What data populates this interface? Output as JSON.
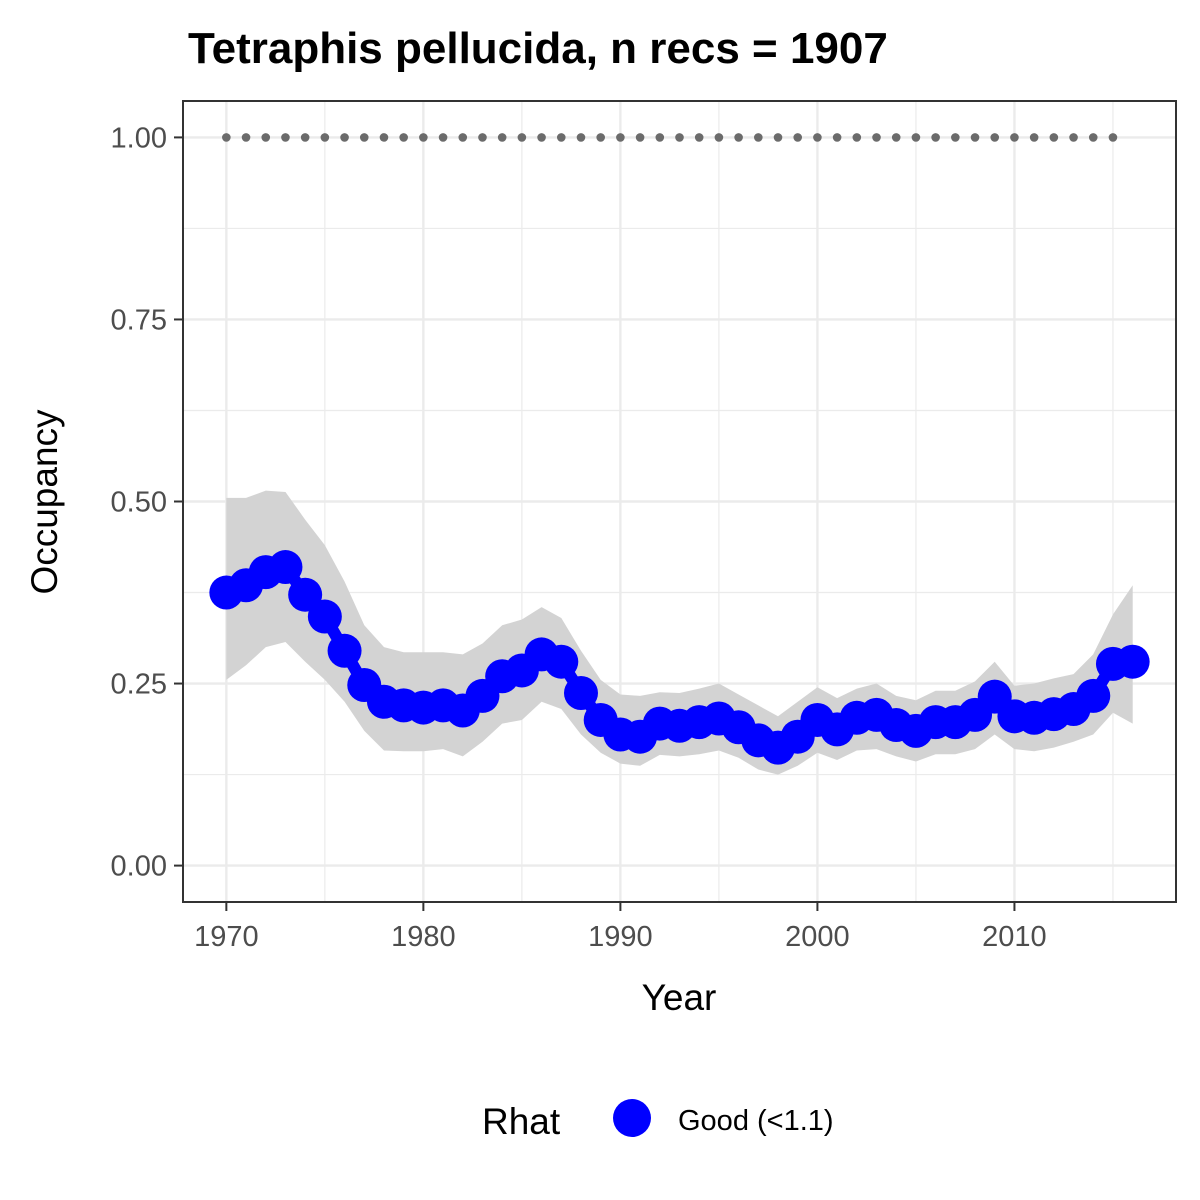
{
  "chart_data": {
    "type": "line",
    "title": "Tetraphis pellucida, n recs = 1907",
    "xlabel": "Year",
    "ylabel": "Occupancy",
    "xlim": [
      1967.8,
      2018.2
    ],
    "ylim": [
      -0.05,
      1.05
    ],
    "x_ticks": [
      1970,
      1980,
      1990,
      2000,
      2010
    ],
    "x_tick_labels": [
      "1970",
      "1980",
      "1990",
      "2000",
      "2010"
    ],
    "y_ticks": [
      0,
      0.25,
      0.5,
      0.75,
      1.0
    ],
    "y_tick_labels": [
      "0.00",
      "0.25",
      "0.50",
      "0.75",
      "1.00"
    ],
    "grid": true,
    "legend": {
      "title": "Rhat",
      "placement": "bottom",
      "entries": [
        {
          "label": "Good (<1.1)",
          "color": "#0000ff"
        }
      ]
    },
    "colors": {
      "points": "#0000ff",
      "ribbon": "#d3d3d3",
      "reference": "#6b6b6b",
      "grid": "#ebebeb",
      "border": "#333333"
    },
    "series": [
      {
        "name": "Good (<1.1)",
        "x": [
          1970,
          1971,
          1972,
          1973,
          1974,
          1975,
          1976,
          1977,
          1978,
          1979,
          1980,
          1981,
          1982,
          1983,
          1984,
          1985,
          1986,
          1987,
          1988,
          1989,
          1990,
          1991,
          1992,
          1993,
          1994,
          1995,
          1996,
          1997,
          1998,
          1999,
          2000,
          2001,
          2002,
          2003,
          2004,
          2005,
          2006,
          2007,
          2008,
          2009,
          2010,
          2011,
          2012,
          2013,
          2014,
          2015,
          2016
        ],
        "y": [
          0.375,
          0.385,
          0.403,
          0.41,
          0.372,
          0.342,
          0.295,
          0.248,
          0.225,
          0.22,
          0.217,
          0.22,
          0.213,
          0.233,
          0.26,
          0.268,
          0.29,
          0.28,
          0.237,
          0.2,
          0.18,
          0.177,
          0.195,
          0.192,
          0.197,
          0.202,
          0.19,
          0.172,
          0.162,
          0.177,
          0.2,
          0.187,
          0.203,
          0.207,
          0.193,
          0.185,
          0.197,
          0.197,
          0.207,
          0.232,
          0.205,
          0.203,
          0.208,
          0.215,
          0.233,
          0.277,
          0.28
        ],
        "lower": [
          0.255,
          0.275,
          0.3,
          0.307,
          0.28,
          0.255,
          0.225,
          0.185,
          0.158,
          0.157,
          0.157,
          0.16,
          0.15,
          0.17,
          0.195,
          0.2,
          0.225,
          0.215,
          0.18,
          0.155,
          0.14,
          0.137,
          0.152,
          0.15,
          0.153,
          0.158,
          0.148,
          0.132,
          0.125,
          0.137,
          0.155,
          0.145,
          0.158,
          0.16,
          0.15,
          0.143,
          0.153,
          0.153,
          0.16,
          0.18,
          0.16,
          0.157,
          0.162,
          0.17,
          0.18,
          0.21,
          0.195
        ],
        "upper": [
          0.505,
          0.505,
          0.515,
          0.513,
          0.475,
          0.44,
          0.39,
          0.33,
          0.3,
          0.293,
          0.293,
          0.293,
          0.29,
          0.305,
          0.33,
          0.338,
          0.355,
          0.34,
          0.295,
          0.255,
          0.235,
          0.233,
          0.238,
          0.237,
          0.243,
          0.25,
          0.235,
          0.22,
          0.205,
          0.225,
          0.245,
          0.23,
          0.243,
          0.25,
          0.233,
          0.227,
          0.24,
          0.24,
          0.253,
          0.28,
          0.247,
          0.25,
          0.257,
          0.263,
          0.29,
          0.345,
          0.385
        ]
      }
    ],
    "reference": {
      "y": 1.0,
      "x": [
        1970,
        1971,
        1972,
        1973,
        1974,
        1975,
        1976,
        1977,
        1978,
        1979,
        1980,
        1981,
        1982,
        1983,
        1984,
        1985,
        1986,
        1987,
        1988,
        1989,
        1990,
        1991,
        1992,
        1993,
        1994,
        1995,
        1996,
        1997,
        1998,
        1999,
        2000,
        2001,
        2002,
        2003,
        2004,
        2005,
        2006,
        2007,
        2008,
        2009,
        2010,
        2011,
        2012,
        2013,
        2014,
        2015
      ]
    }
  }
}
